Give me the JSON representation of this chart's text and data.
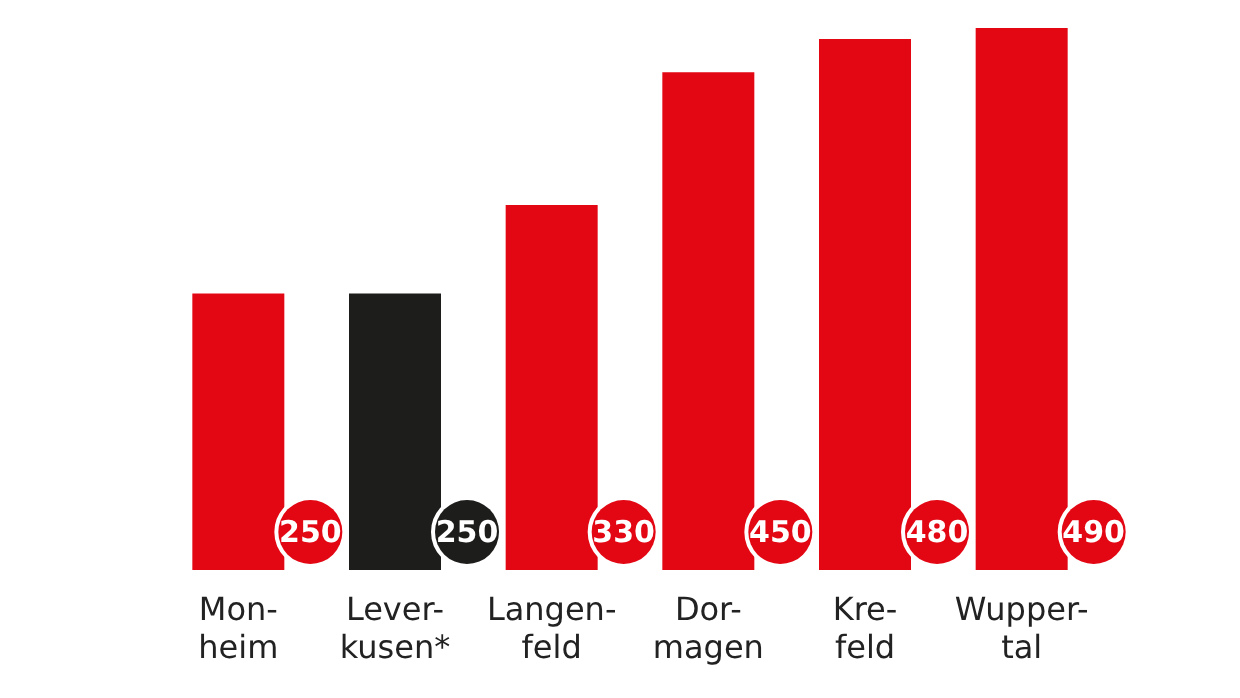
{
  "chart_data": {
    "type": "bar",
    "categories": [
      "Mon-\nheim",
      "Lever-\nkusen*",
      "Langen-\nfeld",
      "Dor-\nmagen",
      "Kre-\nfeld",
      "Wupper-\ntal"
    ],
    "values": [
      250,
      250,
      330,
      450,
      480,
      490
    ],
    "colors": [
      "#e30613",
      "#1d1d1b",
      "#e30613",
      "#e30613",
      "#e30613",
      "#e30613"
    ],
    "data_labels": true
  }
}
